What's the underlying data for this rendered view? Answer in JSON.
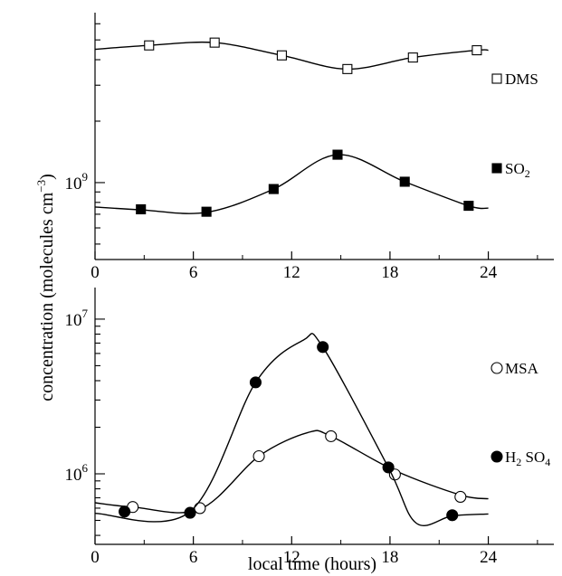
{
  "chart_data": [
    {
      "type": "scatter",
      "panel": "top",
      "y_scale": "log",
      "xlim": [
        0,
        28
      ],
      "xticks": [
        0,
        6,
        12,
        18,
        24
      ],
      "ytick_labels": [
        {
          "value": 1000000000,
          "base": "10",
          "exp": "9"
        }
      ],
      "series": [
        {
          "name": "DMS",
          "marker": "open-square",
          "points": [
            [
              3.3,
              4700000000.0
            ],
            [
              7.3,
              4850000000.0
            ],
            [
              11.4,
              4200000000.0
            ],
            [
              15.4,
              3600000000.0
            ],
            [
              19.4,
              4100000000.0
            ],
            [
              23.3,
              4450000000.0
            ]
          ],
          "curve": [
            [
              0,
              4500000000.0
            ],
            [
              3.3,
              4700000000.0
            ],
            [
              7.3,
              4850000000.0
            ],
            [
              11.4,
              4200000000.0
            ],
            [
              15.4,
              3600000000.0
            ],
            [
              19.4,
              4100000000.0
            ],
            [
              23.3,
              4450000000.0
            ],
            [
              24,
              4450000000.0
            ]
          ]
        },
        {
          "name": "SO",
          "name_sub": "2",
          "marker": "filled-square",
          "points": [
            [
              2.8,
              740000000.0
            ],
            [
              6.8,
              720000000.0
            ],
            [
              10.9,
              930000000.0
            ],
            [
              14.8,
              1370000000.0
            ],
            [
              18.9,
              1010000000.0
            ],
            [
              22.8,
              770000000.0
            ]
          ],
          "curve": [
            [
              0,
              760000000.0
            ],
            [
              2.8,
              735000000.0
            ],
            [
              6.8,
              715000000.0
            ],
            [
              10.9,
              930000000.0
            ],
            [
              14.8,
              1370000000.0
            ],
            [
              18.9,
              1010000000.0
            ],
            [
              22.8,
              770000000.0
            ],
            [
              24,
              750000000.0
            ]
          ]
        }
      ]
    },
    {
      "type": "scatter",
      "panel": "bottom",
      "y_scale": "log",
      "xlim": [
        0,
        28
      ],
      "xticks": [
        0,
        6,
        12,
        18,
        24
      ],
      "ytick_labels": [
        {
          "value": 10000000,
          "base": "10",
          "exp": "7"
        },
        {
          "value": 1000000,
          "base": "10",
          "exp": "6"
        }
      ],
      "series": [
        {
          "name": "MSA",
          "marker": "open-circle",
          "points": [
            [
              2.3,
              610000.0
            ],
            [
              6.4,
              600000.0
            ],
            [
              10.0,
              1300000.0
            ],
            [
              14.4,
              1750000.0
            ],
            [
              18.3,
              990000.0
            ],
            [
              22.3,
              710000.0
            ]
          ],
          "curve": [
            [
              0,
              650000.0
            ],
            [
              2.3,
              610000.0
            ],
            [
              6.4,
              590000.0
            ],
            [
              10.0,
              1300000.0
            ],
            [
              13.0,
              1850000.0
            ],
            [
              14.4,
              1750000.0
            ],
            [
              18.3,
              1050000.0
            ],
            [
              22.3,
              730000.0
            ],
            [
              24,
              690000.0
            ]
          ]
        },
        {
          "name": "H",
          "name_sub": "2",
          "name_mid": " SO",
          "name_sub2": "4",
          "marker": "filled-circle",
          "points": [
            [
              1.8,
              570000.0
            ],
            [
              5.8,
              560000.0
            ],
            [
              9.8,
              3900000.0
            ],
            [
              13.9,
              6600000.0
            ],
            [
              17.9,
              1100000.0
            ],
            [
              21.8,
              540000.0
            ]
          ],
          "curve": [
            [
              0,
              555000.0
            ],
            [
              5.8,
              570000.0
            ],
            [
              9.8,
              3900000.0
            ],
            [
              12.7,
              7300000.0
            ],
            [
              13.9,
              6600000.0
            ],
            [
              17.9,
              1100000.0
            ],
            [
              19.6,
              480000.0
            ],
            [
              21.8,
              535000.0
            ],
            [
              24,
              550000.0
            ]
          ]
        }
      ]
    }
  ],
  "xlabel": "local time (hours)",
  "ylabel_main": "concentration (molecules cm",
  "ylabel_sup": "−3",
  "ylabel_end": ")"
}
